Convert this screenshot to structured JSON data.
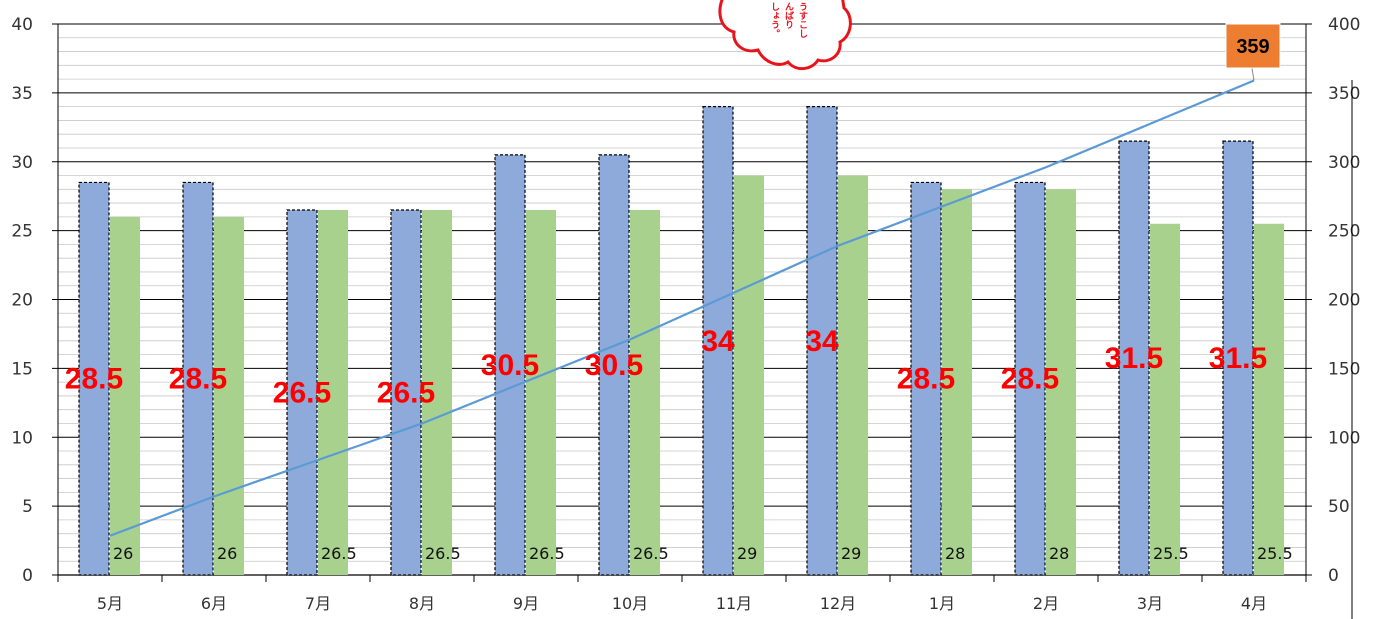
{
  "chart_data": {
    "type": "bar",
    "categories": [
      "5月",
      "6月",
      "7月",
      "8月",
      "9月",
      "10月",
      "11月",
      "12月",
      "1月",
      "2月",
      "3月",
      "4月"
    ],
    "series": [
      {
        "values": [
          28.5,
          28.5,
          26.5,
          26.5,
          30.5,
          30.5,
          34,
          34,
          28.5,
          28.5,
          31.5,
          31.5
        ],
        "color": "#8eaadb",
        "axis": "left",
        "kind": "bar",
        "style": "dashed-border"
      },
      {
        "values": [
          26,
          26,
          26.5,
          26.5,
          26.5,
          26.5,
          29,
          29,
          28,
          28,
          25.5,
          25.5
        ],
        "color": "#a9d18e",
        "axis": "left",
        "kind": "bar"
      },
      {
        "values": [
          28.5,
          57,
          83.5,
          110,
          140.5,
          171,
          205,
          239,
          267.5,
          296,
          327.5,
          359
        ],
        "color": "#5b9bd5",
        "axis": "right",
        "kind": "line"
      }
    ],
    "ylim": [
      0,
      40
    ],
    "y_ticks": [
      0,
      5,
      10,
      15,
      20,
      25,
      30,
      35,
      40
    ],
    "y2lim": [
      0,
      400
    ],
    "y2_ticks": [
      0,
      50,
      100,
      150,
      200,
      250,
      300,
      350,
      400
    ],
    "callout": {
      "text": "359",
      "color": "#ed7d31"
    },
    "minor_gridlines": true,
    "legend": "none"
  },
  "stamp": {
    "line1": "うすこし",
    "line2": "んばり",
    "line3": "しょう。"
  }
}
